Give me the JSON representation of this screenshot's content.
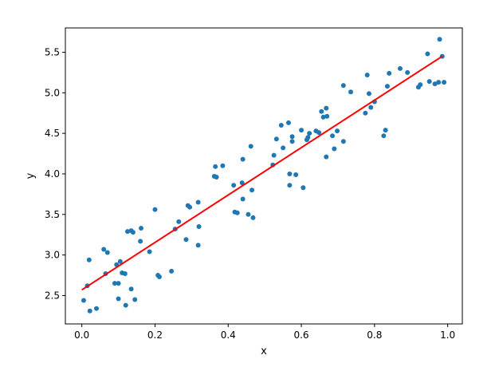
{
  "chart_data": {
    "type": "scatter",
    "title": "",
    "xlabel": "x",
    "ylabel": "y",
    "xlim": [
      -0.045,
      1.04
    ],
    "ylim": [
      2.15,
      5.8
    ],
    "xticks": [
      0.0,
      0.2,
      0.4,
      0.6,
      0.8,
      1.0
    ],
    "xtick_labels": [
      "0.0",
      "0.2",
      "0.4",
      "0.6",
      "0.8",
      "1.0"
    ],
    "yticks": [
      2.5,
      3.0,
      3.5,
      4.0,
      4.5,
      5.0,
      5.5
    ],
    "ytick_labels": [
      "2.5",
      "3.0",
      "3.5",
      "4.0",
      "4.5",
      "5.0",
      "5.5"
    ],
    "grid": false,
    "legend": "none",
    "colors": {
      "points": "#1f77b4",
      "fit_line": "#ff0000",
      "axes": "#000000"
    },
    "series": [
      {
        "type": "scatter",
        "points": [
          [
            0.005,
            2.44
          ],
          [
            0.015,
            2.62
          ],
          [
            0.02,
            2.94
          ],
          [
            0.022,
            2.31
          ],
          [
            0.04,
            2.34
          ],
          [
            0.06,
            3.07
          ],
          [
            0.065,
            2.77
          ],
          [
            0.07,
            3.03
          ],
          [
            0.09,
            2.65
          ],
          [
            0.095,
            2.88
          ],
          [
            0.1,
            2.46
          ],
          [
            0.1,
            2.65
          ],
          [
            0.105,
            2.92
          ],
          [
            0.11,
            2.78
          ],
          [
            0.118,
            2.77
          ],
          [
            0.12,
            2.38
          ],
          [
            0.125,
            3.29
          ],
          [
            0.135,
            2.58
          ],
          [
            0.135,
            3.3
          ],
          [
            0.14,
            3.28
          ],
          [
            0.145,
            2.45
          ],
          [
            0.16,
            3.17
          ],
          [
            0.162,
            3.33
          ],
          [
            0.185,
            3.04
          ],
          [
            0.2,
            3.56
          ],
          [
            0.208,
            2.75
          ],
          [
            0.212,
            2.73
          ],
          [
            0.245,
            2.8
          ],
          [
            0.255,
            3.32
          ],
          [
            0.265,
            3.41
          ],
          [
            0.285,
            3.19
          ],
          [
            0.29,
            3.61
          ],
          [
            0.295,
            3.59
          ],
          [
            0.318,
            3.65
          ],
          [
            0.318,
            3.12
          ],
          [
            0.32,
            3.35
          ],
          [
            0.362,
            3.97
          ],
          [
            0.365,
            4.09
          ],
          [
            0.368,
            3.96
          ],
          [
            0.385,
            4.1
          ],
          [
            0.415,
            3.86
          ],
          [
            0.418,
            3.53
          ],
          [
            0.425,
            3.52
          ],
          [
            0.438,
            3.89
          ],
          [
            0.44,
            3.69
          ],
          [
            0.44,
            4.18
          ],
          [
            0.455,
            3.5
          ],
          [
            0.462,
            4.34
          ],
          [
            0.465,
            3.8
          ],
          [
            0.468,
            3.46
          ],
          [
            0.522,
            4.11
          ],
          [
            0.525,
            4.23
          ],
          [
            0.532,
            4.43
          ],
          [
            0.545,
            4.6
          ],
          [
            0.55,
            4.32
          ],
          [
            0.565,
            4.63
          ],
          [
            0.568,
            3.86
          ],
          [
            0.568,
            4.0
          ],
          [
            0.575,
            4.4
          ],
          [
            0.575,
            4.46
          ],
          [
            0.585,
            3.99
          ],
          [
            0.6,
            4.54
          ],
          [
            0.605,
            3.83
          ],
          [
            0.615,
            4.42
          ],
          [
            0.618,
            4.45
          ],
          [
            0.622,
            4.5
          ],
          [
            0.64,
            4.53
          ],
          [
            0.648,
            4.51
          ],
          [
            0.655,
            4.77
          ],
          [
            0.66,
            4.7
          ],
          [
            0.668,
            4.21
          ],
          [
            0.668,
            4.81
          ],
          [
            0.67,
            4.71
          ],
          [
            0.685,
            4.47
          ],
          [
            0.69,
            4.31
          ],
          [
            0.698,
            4.53
          ],
          [
            0.715,
            4.4
          ],
          [
            0.715,
            5.09
          ],
          [
            0.735,
            5.01
          ],
          [
            0.775,
            4.75
          ],
          [
            0.78,
            5.22
          ],
          [
            0.785,
            4.99
          ],
          [
            0.79,
            4.82
          ],
          [
            0.8,
            4.89
          ],
          [
            0.825,
            4.47
          ],
          [
            0.83,
            4.54
          ],
          [
            0.835,
            5.08
          ],
          [
            0.84,
            5.24
          ],
          [
            0.87,
            5.3
          ],
          [
            0.89,
            5.25
          ],
          [
            0.92,
            5.07
          ],
          [
            0.925,
            5.1
          ],
          [
            0.945,
            5.48
          ],
          [
            0.95,
            5.14
          ],
          [
            0.965,
            5.11
          ],
          [
            0.975,
            5.13
          ],
          [
            0.978,
            5.66
          ],
          [
            0.985,
            5.45
          ],
          [
            0.99,
            5.13
          ]
        ]
      },
      {
        "type": "line",
        "points": [
          [
            0.0,
            2.57
          ],
          [
            0.985,
            5.45
          ]
        ]
      }
    ]
  }
}
